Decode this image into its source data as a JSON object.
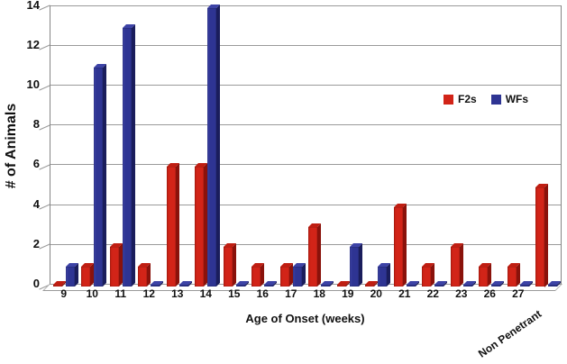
{
  "figure": {
    "y_axis_title": "# of Animals",
    "x_axis_title": "Age of Onset (weeks)"
  },
  "chart_data": {
    "type": "bar",
    "title": "",
    "xlabel": "Age of Onset (weeks)",
    "ylabel": "# of Animals",
    "categories": [
      "9",
      "10",
      "11",
      "12",
      "13",
      "14",
      "15",
      "16",
      "17",
      "18",
      "19",
      "20",
      "21",
      "22",
      "23",
      "26",
      "27",
      "Non Penetrant"
    ],
    "series": [
      {
        "name": "F2s",
        "color": "#d22418",
        "side_color": "#8a120b",
        "top_color": "#c01e12",
        "values": [
          0,
          1,
          2,
          1,
          6,
          6,
          2,
          1,
          1,
          3,
          0,
          0,
          4,
          1,
          2,
          1,
          1,
          5
        ]
      },
      {
        "name": "WFs",
        "color": "#2e3493",
        "side_color": "#1a1d5c",
        "top_color": "#3d43a6",
        "values": [
          1,
          11,
          13,
          0,
          0,
          14,
          0,
          0,
          1,
          0,
          2,
          1,
          0,
          0,
          0,
          0,
          0,
          0
        ]
      }
    ],
    "ylim": [
      0,
      14
    ],
    "yticks": [
      0,
      2,
      4,
      6,
      8,
      10,
      12,
      14
    ],
    "grid": true,
    "grid_color": "#9a9a9a",
    "axis_color": "#858585",
    "effect": "3d",
    "legend_position": "right-middle"
  }
}
